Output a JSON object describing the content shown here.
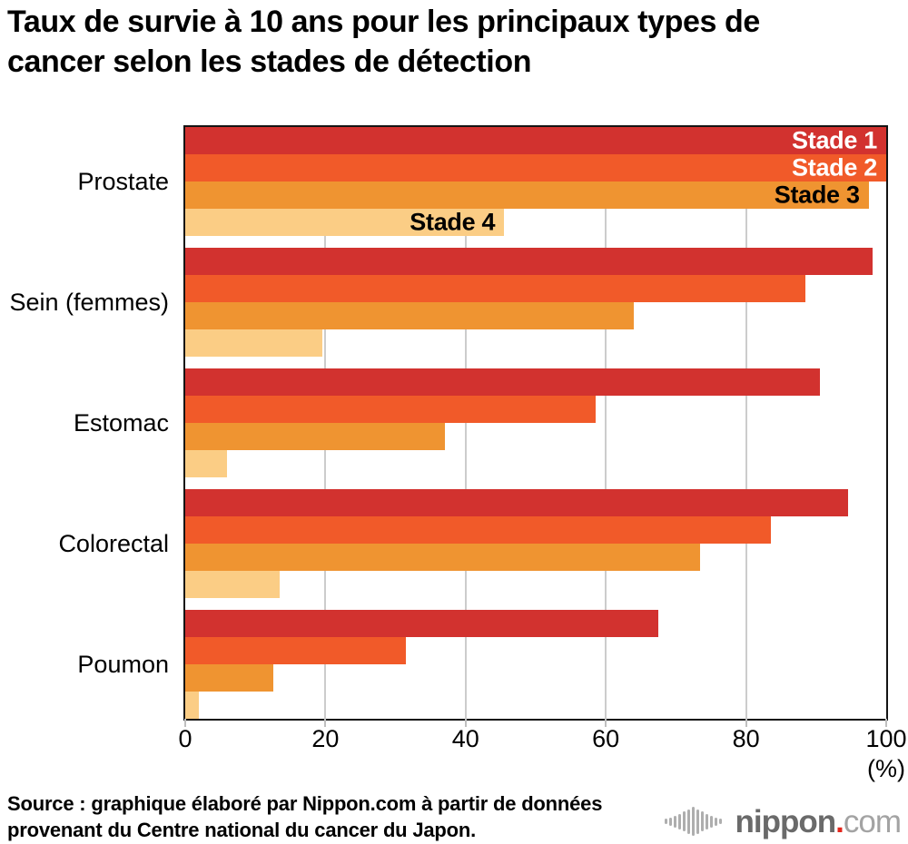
{
  "title_line1": "Taux de survie à 10 ans pour les principaux types de",
  "title_line2": "cancer selon les stades de détection",
  "source_line1": "Source : graphique élaboré par Nippon.com à partir de données",
  "source_line2": "provenant du Centre national du cancer du Japon.",
  "logo": {
    "name": "nippon",
    "dot": ".",
    "com": "com"
  },
  "axis": {
    "ticks": [
      0,
      20,
      40,
      60,
      80,
      100
    ],
    "unit": "(%)",
    "max": 100
  },
  "chart_data": {
    "type": "bar",
    "orientation": "horizontal",
    "title": "Taux de survie à 10 ans pour les principaux types de cancer selon les stades de détection",
    "categories": [
      "Prostate",
      "Sein (femmes)",
      "Estomac",
      "Colorectal",
      "Poumon"
    ],
    "series": [
      {
        "name": "Stade 1",
        "color": "#d2322f",
        "label_color": "#ffffff",
        "values": [
          100,
          98,
          90.5,
          94.5,
          67.5
        ]
      },
      {
        "name": "Stade 2",
        "color": "#f15a29",
        "label_color": "#ffffff",
        "values": [
          100,
          88.5,
          58.5,
          83.5,
          31.5
        ]
      },
      {
        "name": "Stade 3",
        "color": "#ef9431",
        "label_color": "#000000",
        "values": [
          97.5,
          64,
          37,
          73.5,
          12.5
        ]
      },
      {
        "name": "Stade 4",
        "color": "#fbcd85",
        "label_color": "#000000",
        "values": [
          45.5,
          19.5,
          6,
          13.5,
          2
        ]
      }
    ],
    "xlim": [
      0,
      100
    ],
    "xticks": [
      0,
      20,
      40,
      60,
      80,
      100
    ],
    "unit": "%",
    "grid": "vertical-gray",
    "legend": "labels-inside-first-group",
    "frame": "#141414",
    "gridline_color": "#cccccc"
  }
}
